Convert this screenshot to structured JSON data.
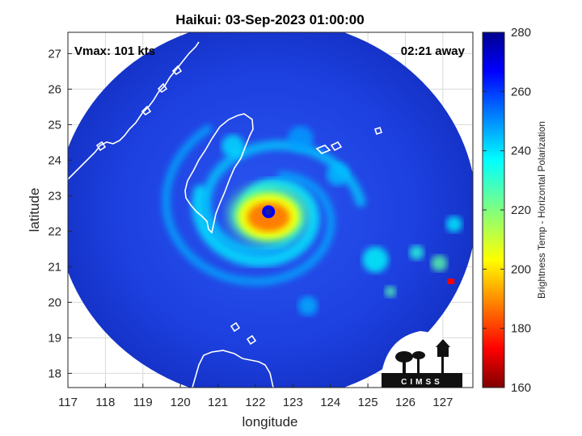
{
  "chart_data": {
    "type": "heatmap",
    "title": "Haikui: 03-Sep-2023 01:00:00",
    "xlabel": "longitude",
    "ylabel": "latitude",
    "xlim": [
      117,
      127.8
    ],
    "ylim": [
      17.6,
      27.6
    ],
    "xticks": [
      117,
      118,
      119,
      120,
      121,
      122,
      123,
      124,
      125,
      126,
      127
    ],
    "yticks": [
      18,
      19,
      20,
      21,
      22,
      23,
      24,
      25,
      26,
      27
    ],
    "grid": true,
    "colorbar": {
      "label": "Brightness Temp - Horizontal Polarization",
      "range": [
        160,
        280
      ],
      "ticks": [
        160,
        180,
        200,
        220,
        240,
        260,
        280
      ],
      "colormap": "jet"
    },
    "annotations": {
      "vmax": "Vmax: 101 kts",
      "time_away": "02:21 away"
    },
    "storm_center": {
      "lon": 122.35,
      "lat": 22.55
    },
    "swath": {
      "center_lon": 122.3,
      "center_lat": 22.6,
      "radius_deg": 5.6
    },
    "features": [
      {
        "kind": "eye",
        "lon": 122.35,
        "lat": 22.55,
        "value": 268
      },
      {
        "kind": "eyewall",
        "lon": 122.35,
        "lat": 22.4,
        "value": 188
      },
      {
        "kind": "cold-spot",
        "lon": 127.2,
        "lat": 20.6,
        "value": 172
      }
    ],
    "logo_text": "CIMSS"
  },
  "colors": {
    "background": "#ffffff",
    "axis": "#262626",
    "coastline": "#ffffff",
    "swath_base": "#1b3bd6"
  }
}
